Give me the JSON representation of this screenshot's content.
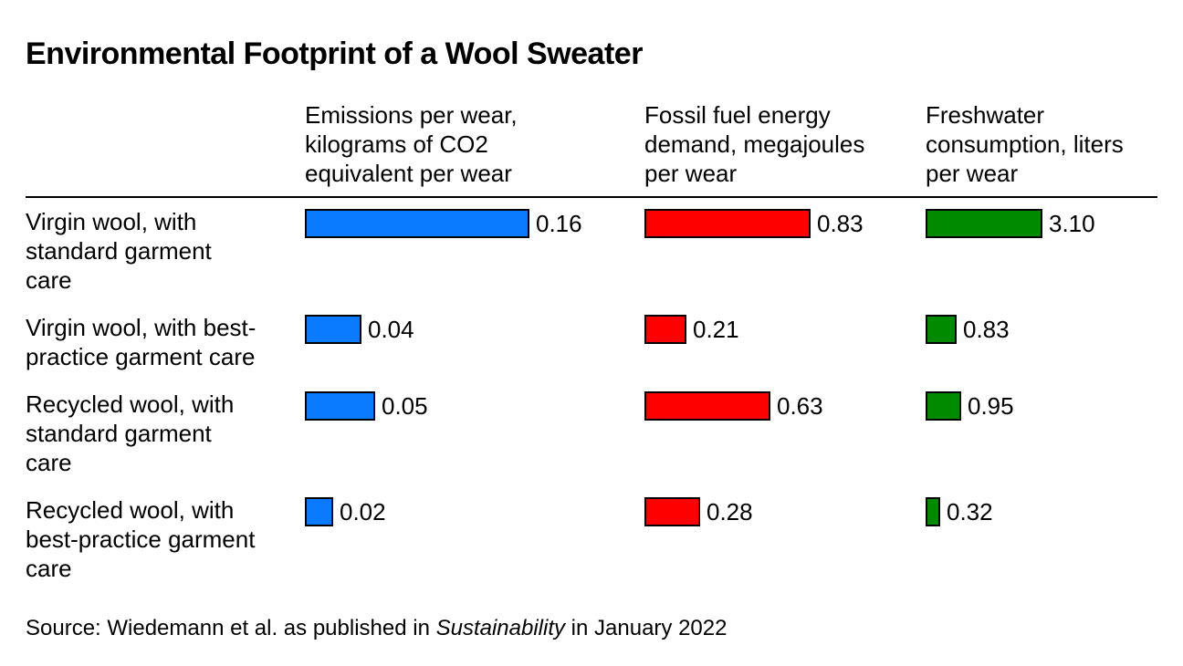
{
  "title": "Environmental Footprint of a Wool Sweater",
  "source": {
    "prefix": "Source: Wiedemann et al. as published in ",
    "publication": "Sustainability",
    "suffix": " in January 2022"
  },
  "chart_data": {
    "type": "bar",
    "title": "Environmental Footprint of a Wool Sweater",
    "categories": [
      "Virgin wool, with standard garment care",
      "Virgin wool, with best-practice garment care",
      "Recycled wool, with standard garment care",
      "Recycled wool, with best-practice garment care"
    ],
    "category_lines": [
      "Virgin wool, with\nstandard garment\ncare",
      "Virgin wool, with best-\npractice garment care",
      "Recycled wool, with\nstandard garment\ncare",
      "Recycled wool, with\nbest-practice garment\ncare"
    ],
    "series": [
      {
        "name": "Emissions per wear, kilograms of CO2 equivalent per wear",
        "header_lines": "Emissions per wear,\nkilograms of CO2\nequivalent per wear",
        "color": "#0a7bff",
        "values": [
          0.16,
          0.04,
          0.05,
          0.02
        ],
        "labels": [
          "0.16",
          "0.04",
          "0.05",
          "0.02"
        ]
      },
      {
        "name": "Fossil fuel energy demand, megajoules per wear",
        "header_lines": "Fossil fuel energy\ndemand, megajoules\nper wear",
        "color": "#ff0000",
        "values": [
          0.83,
          0.21,
          0.63,
          0.28
        ],
        "labels": [
          "0.83",
          "0.21",
          "0.63",
          "0.28"
        ]
      },
      {
        "name": "Freshwater consumption, liters per wear",
        "header_lines": "Freshwater\nconsumption, liters\nper wear",
        "color": "#008a00",
        "values": [
          3.1,
          0.83,
          0.95,
          0.32
        ],
        "labels": [
          "3.10",
          "0.83",
          "0.95",
          "0.32"
        ]
      }
    ],
    "grid": false,
    "legend": "none"
  }
}
